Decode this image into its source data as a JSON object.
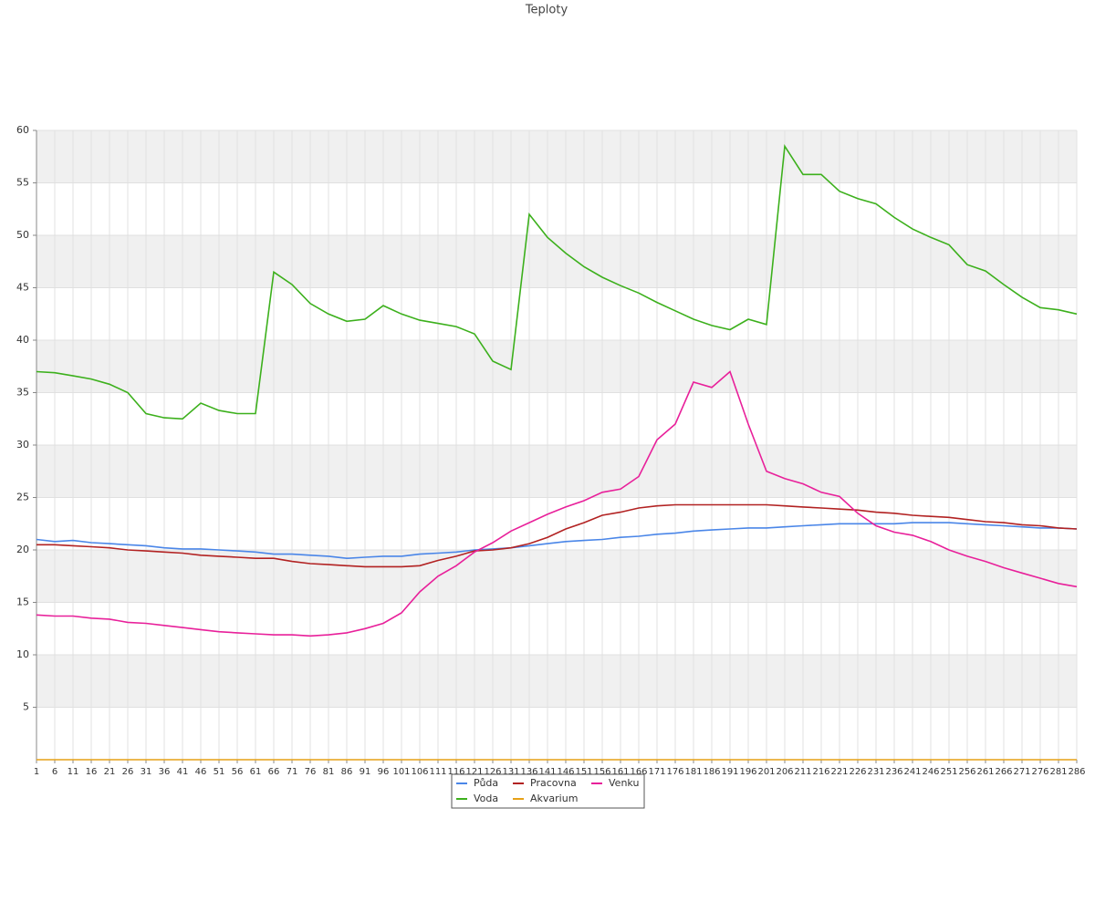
{
  "chart_data": {
    "type": "line",
    "title": "Teploty",
    "x": [
      1,
      6,
      11,
      16,
      21,
      26,
      31,
      36,
      41,
      46,
      51,
      56,
      61,
      66,
      71,
      76,
      81,
      86,
      91,
      96,
      101,
      106,
      111,
      116,
      121,
      126,
      131,
      136,
      141,
      146,
      151,
      156,
      161,
      166,
      171,
      176,
      181,
      186,
      191,
      196,
      201,
      206,
      211,
      216,
      221,
      226,
      231,
      236,
      241,
      246,
      251,
      256,
      261,
      266,
      271,
      276,
      281,
      286
    ],
    "xlim": [
      1,
      286
    ],
    "ylim": [
      0,
      60
    ],
    "yticks": [
      5,
      10,
      15,
      20,
      25,
      30,
      35,
      40,
      45,
      50,
      55,
      60
    ],
    "grid": true,
    "legend": "bottom",
    "series": [
      {
        "name": "Půda",
        "color": "#4a86e8",
        "values": [
          21,
          20.8,
          20.9,
          20.7,
          20.6,
          20.5,
          20.4,
          20.2,
          20.1,
          20.1,
          20,
          19.9,
          19.8,
          19.6,
          19.6,
          19.5,
          19.4,
          19.2,
          19.3,
          19.4,
          19.4,
          19.6,
          19.7,
          19.8,
          20,
          20.1,
          20.2,
          20.4,
          20.6,
          20.8,
          20.9,
          21,
          21.2,
          21.3,
          21.5,
          21.6,
          21.8,
          21.9,
          22,
          22.1,
          22.1,
          22.2,
          22.3,
          22.4,
          22.5,
          22.5,
          22.5,
          22.5,
          22.6,
          22.6,
          22.6,
          22.5,
          22.4,
          22.3,
          22.2,
          22.1,
          22.1,
          22
        ]
      },
      {
        "name": "Voda",
        "color": "#3cb01c",
        "values": [
          37,
          36.9,
          36.6,
          36.3,
          35.8,
          35,
          33,
          32.6,
          32.5,
          34,
          33.3,
          33,
          33,
          46.5,
          45.3,
          43.5,
          42.5,
          41.8,
          42,
          43.3,
          42.5,
          41.9,
          41.6,
          41.3,
          40.6,
          38,
          37.2,
          52,
          49.8,
          48.3,
          47,
          46,
          45.2,
          44.5,
          43.6,
          42.8,
          42,
          41.4,
          41,
          42,
          41.5,
          58.5,
          55.8,
          55.8,
          54.2,
          53.5,
          53,
          51.7,
          50.6,
          49.8,
          49.1,
          47.2,
          46.6,
          45.3,
          44.1,
          43.1,
          42.9,
          42.5
        ]
      },
      {
        "name": "Pracovna",
        "color": "#b22222",
        "values": [
          20.5,
          20.5,
          20.4,
          20.3,
          20.2,
          20,
          19.9,
          19.8,
          19.7,
          19.5,
          19.4,
          19.3,
          19.2,
          19.2,
          18.9,
          18.7,
          18.6,
          18.5,
          18.4,
          18.4,
          18.4,
          18.5,
          19,
          19.4,
          19.9,
          20,
          20.2,
          20.6,
          21.2,
          22,
          22.6,
          23.3,
          23.6,
          24,
          24.2,
          24.3,
          24.3,
          24.3,
          24.3,
          24.3,
          24.3,
          24.2,
          24.1,
          24,
          23.9,
          23.8,
          23.6,
          23.5,
          23.3,
          23.2,
          23.1,
          22.9,
          22.7,
          22.6,
          22.4,
          22.3,
          22.1,
          22
        ]
      },
      {
        "name": "Akvarium",
        "color": "#e6a117",
        "values": [
          0,
          0,
          0,
          0,
          0,
          0,
          0,
          0,
          0,
          0,
          0,
          0,
          0,
          0,
          0,
          0,
          0,
          0,
          0,
          0,
          0,
          0,
          0,
          0,
          0,
          0,
          0,
          0,
          0,
          0,
          0,
          0,
          0,
          0,
          0,
          0,
          0,
          0,
          0,
          0,
          0,
          0,
          0,
          0,
          0,
          0,
          0,
          0,
          0,
          0,
          0,
          0,
          0,
          0,
          0,
          0,
          0,
          0
        ]
      },
      {
        "name": "Venku",
        "color": "#e8209a",
        "values": [
          13.8,
          13.7,
          13.7,
          13.5,
          13.4,
          13.1,
          13,
          12.8,
          12.6,
          12.4,
          12.2,
          12.1,
          12,
          11.9,
          11.9,
          11.8,
          11.9,
          12.1,
          12.5,
          13,
          14,
          16,
          17.5,
          18.5,
          19.8,
          20.7,
          21.8,
          22.6,
          23.4,
          24.1,
          24.7,
          25.5,
          25.8,
          27,
          30.5,
          32,
          36,
          35.5,
          37,
          32,
          27.5,
          26.8,
          26.3,
          25.5,
          25.1,
          23.5,
          22.3,
          21.7,
          21.4,
          20.8,
          20,
          19.4,
          18.9,
          18.3,
          17.8,
          17.3,
          16.8,
          16.5
        ]
      }
    ]
  }
}
